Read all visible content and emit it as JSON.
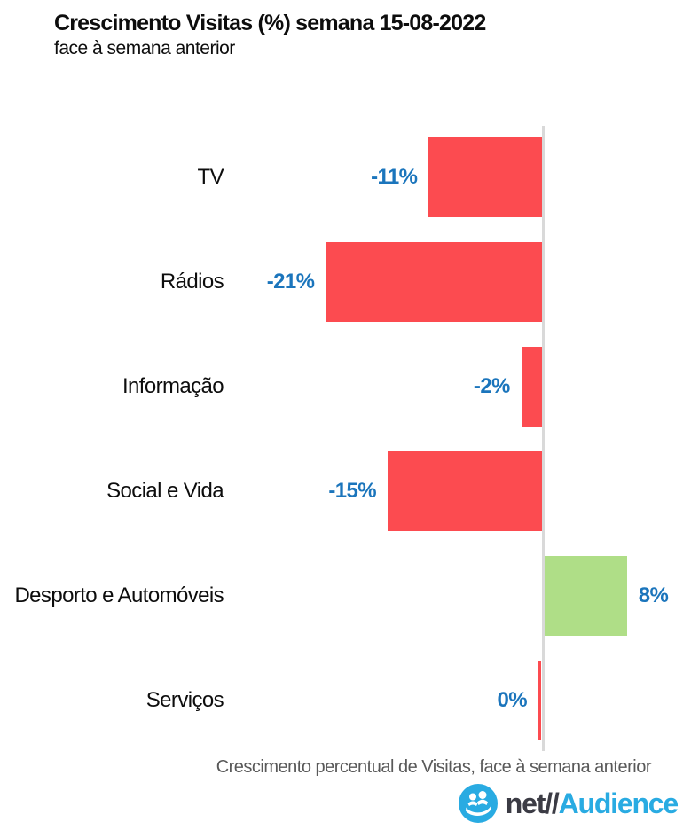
{
  "header": {
    "title": "Crescimento Visitas (%) semana 15-08-2022",
    "subtitle": "face à semana anterior"
  },
  "chart_data": {
    "type": "bar",
    "orientation": "horizontal",
    "title": "Crescimento Visitas (%) semana 15-08-2022",
    "subtitle": "face à semana anterior",
    "categories": [
      "TV",
      "Rádios",
      "Informação",
      "Social e Vida",
      "Desporto e Automóveis",
      "Serviços"
    ],
    "values": [
      -11,
      -21,
      -2,
      -15,
      8,
      0
    ],
    "value_labels": [
      "-11%",
      "-21%",
      "-2%",
      "-15%",
      "8%",
      "0%"
    ],
    "unit": "%",
    "xlabel": "Crescimento percentual de Visitas, face à semana anterior",
    "ylabel": "",
    "xlim": [
      -30,
      14
    ],
    "grid": false,
    "legend": false,
    "axis_tick_labels_visible": false,
    "bar_colors": {
      "negative": "#FC4B50",
      "positive": "#AFDE87"
    },
    "value_label_color": "#1B75BC",
    "zero_line_color": "#D9D9D9"
  },
  "footer": {
    "caption": "Crescimento percentual de Visitas, face à semana anterior",
    "logo": {
      "prefix": "net//",
      "suffix": "Audience",
      "icon": "audience-people-icon"
    }
  },
  "colors": {
    "logo_blue": "#29ABE2",
    "logo_dark": "#3B3B44",
    "caption_gray": "#595959"
  }
}
